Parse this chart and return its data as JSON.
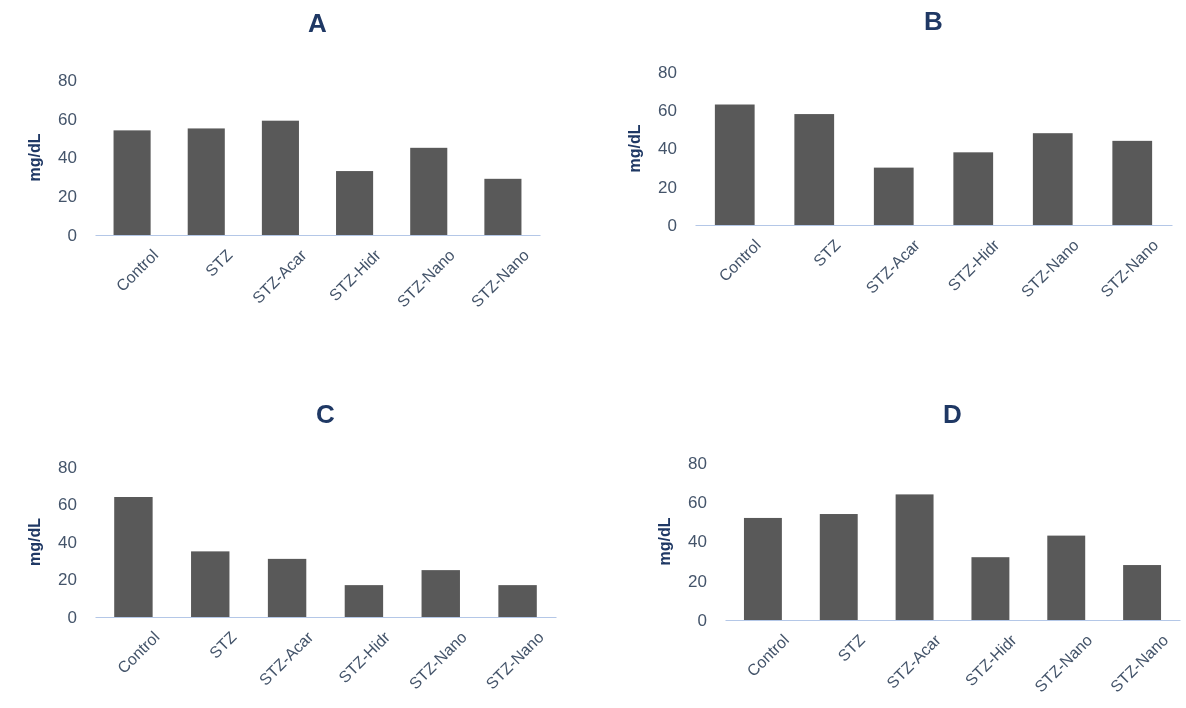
{
  "chart_data": [
    {
      "type": "bar",
      "title": "A",
      "ylabel": "mg/dL",
      "categories": [
        "Control",
        "STZ",
        "STZ-Acar",
        "STZ-Hidr",
        "STZ-Nano",
        "STZ-Nano"
      ],
      "values": [
        54,
        55,
        59,
        33,
        45,
        29
      ],
      "color": "#595959",
      "ylim": [
        0,
        80
      ],
      "yticks": [
        0,
        20,
        40,
        60,
        80
      ],
      "grid": false
    },
    {
      "type": "bar",
      "title": "B",
      "ylabel": "mg/dL",
      "categories": [
        "Control",
        "STZ",
        "STZ-Acar",
        "STZ-Hidr",
        "STZ-Nano",
        "STZ-Nano"
      ],
      "values": [
        63,
        58,
        30,
        38,
        48,
        44
      ],
      "color": "#595959",
      "ylim": [
        0,
        80
      ],
      "yticks": [
        0,
        20,
        40,
        60,
        80
      ],
      "grid": false
    },
    {
      "type": "bar",
      "title": "C",
      "ylabel": "mg/dL",
      "categories": [
        "Control",
        "STZ",
        "STZ-Acar",
        "STZ-Hidr",
        "STZ-Nano",
        "STZ-Nano"
      ],
      "values": [
        64,
        35,
        31,
        17,
        25,
        17
      ],
      "color": "#595959",
      "ylim": [
        0,
        80
      ],
      "yticks": [
        0,
        20,
        40,
        60,
        80
      ],
      "grid": false
    },
    {
      "type": "bar",
      "title": "D",
      "ylabel": "mg/dL",
      "categories": [
        "Control",
        "STZ",
        "STZ-Acar",
        "STZ-Hidr",
        "STZ-Nano",
        "STZ-Nano"
      ],
      "values": [
        52,
        54,
        64,
        32,
        43,
        28
      ],
      "color": "#595959",
      "ylim": [
        0,
        80
      ],
      "yticks": [
        0,
        20,
        40,
        60,
        80
      ],
      "grid": false
    }
  ]
}
